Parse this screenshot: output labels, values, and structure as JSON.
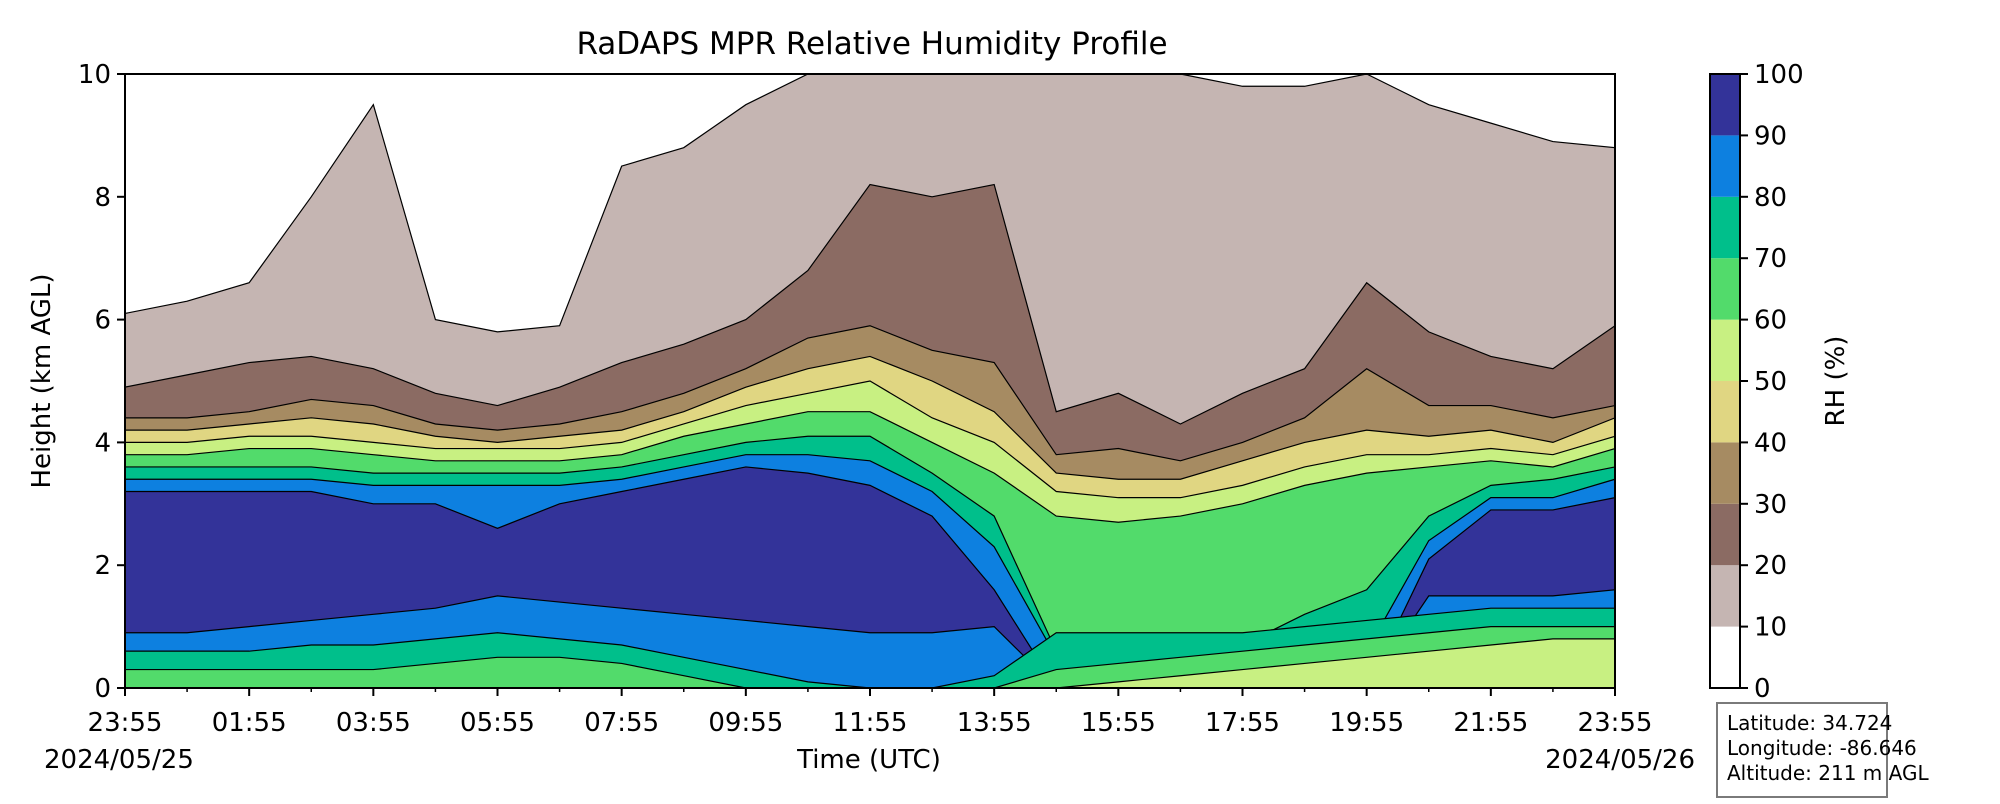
{
  "chart_data": {
    "type": "contour",
    "title": "RaDAPS MPR Relative Humidity Profile",
    "xlabel": "Time (UTC)",
    "ylabel": "Height (km AGL)",
    "x_tick_labels": [
      "23:55",
      "01:55",
      "03:55",
      "05:55",
      "07:55",
      "09:55",
      "11:55",
      "13:55",
      "15:55",
      "17:55",
      "19:55",
      "21:55",
      "23:55"
    ],
    "x_start_date": "2024/05/25",
    "x_end_date": "2024/05/26",
    "ylim": [
      0,
      10
    ],
    "y_ticks": [
      "0",
      "2",
      "4",
      "6",
      "8",
      "10"
    ],
    "colorbar": {
      "label": "RH (%)",
      "ticks": [
        "0",
        "10",
        "20",
        "30",
        "40",
        "50",
        "60",
        "70",
        "80",
        "90",
        "100"
      ],
      "levels": [
        0,
        10,
        20,
        30,
        40,
        50,
        60,
        70,
        80,
        90,
        100
      ],
      "colors": [
        "#ffffff",
        "#c5b5b2",
        "#8b6b63",
        "#a68b62",
        "#e0d682",
        "#c8f082",
        "#52db6b",
        "#00bf8b",
        "#0d80e0",
        "#333399"
      ]
    },
    "x_hours_from_start": [
      0,
      1,
      2,
      3,
      4,
      5,
      6,
      7,
      8,
      9,
      10,
      11,
      12,
      13,
      14,
      15,
      16,
      17,
      18,
      19,
      20,
      21,
      22,
      23,
      24
    ],
    "contour_heights_km": {
      "rh_10": [
        6.1,
        6.3,
        6.6,
        8.0,
        9.5,
        6.0,
        5.8,
        5.9,
        8.5,
        8.8,
        9.5,
        10,
        10,
        10,
        10,
        10,
        10,
        10,
        9.8,
        9.8,
        10,
        9.5,
        9.2,
        8.9,
        8.8
      ],
      "rh_20": [
        4.9,
        5.1,
        5.3,
        5.4,
        5.2,
        4.8,
        4.6,
        4.9,
        5.3,
        5.6,
        6.0,
        6.8,
        8.2,
        8.0,
        8.2,
        4.5,
        4.8,
        4.3,
        4.8,
        5.2,
        6.6,
        5.8,
        5.4,
        5.2,
        5.9
      ],
      "rh_30": [
        4.4,
        4.4,
        4.5,
        4.7,
        4.6,
        4.3,
        4.2,
        4.3,
        4.5,
        4.8,
        5.2,
        5.7,
        5.9,
        5.5,
        5.3,
        3.8,
        3.9,
        3.7,
        4.0,
        4.4,
        5.2,
        4.6,
        4.6,
        4.4,
        4.6
      ],
      "rh_40": [
        4.2,
        4.2,
        4.3,
        4.4,
        4.3,
        4.1,
        4.0,
        4.1,
        4.2,
        4.5,
        4.9,
        5.2,
        5.4,
        5.0,
        4.5,
        3.5,
        3.4,
        3.4,
        3.7,
        4.0,
        4.2,
        4.1,
        4.2,
        4.0,
        4.4
      ],
      "rh_50": [
        4.0,
        4.0,
        4.1,
        4.1,
        4.0,
        3.9,
        3.9,
        3.9,
        4.0,
        4.3,
        4.6,
        4.8,
        5.0,
        4.4,
        4.0,
        3.2,
        3.1,
        3.1,
        3.3,
        3.6,
        3.8,
        3.8,
        3.9,
        3.8,
        4.1
      ],
      "rh_60": [
        3.8,
        3.8,
        3.9,
        3.9,
        3.8,
        3.7,
        3.7,
        3.7,
        3.8,
        4.1,
        4.3,
        4.5,
        4.5,
        4.0,
        3.5,
        2.8,
        2.7,
        2.8,
        3.0,
        3.3,
        3.5,
        3.6,
        3.7,
        3.6,
        3.9
      ],
      "rh_70": [
        3.6,
        3.6,
        3.6,
        3.6,
        3.5,
        3.5,
        3.5,
        3.5,
        3.6,
        3.8,
        4.0,
        4.1,
        4.1,
        3.5,
        2.8,
        0.6,
        0.4,
        0.5,
        0.7,
        1.2,
        1.6,
        2.8,
        3.3,
        3.4,
        3.6
      ],
      "rh_80": [
        3.4,
        3.4,
        3.4,
        3.4,
        3.3,
        3.3,
        3.3,
        3.3,
        3.4,
        3.6,
        3.8,
        3.8,
        3.7,
        3.2,
        2.3,
        0.5,
        0.4,
        0.3,
        0.3,
        0.4,
        0.6,
        2.4,
        3.1,
        3.1,
        3.4
      ],
      "rh_90": [
        3.2,
        3.2,
        3.2,
        3.2,
        3.0,
        3.0,
        2.6,
        3.0,
        3.2,
        3.4,
        3.6,
        3.5,
        3.3,
        2.8,
        1.6,
        0,
        0,
        0,
        0,
        0,
        0,
        2.1,
        2.9,
        2.9,
        3.1
      ],
      "rh_90_bottom": [
        0.9,
        0.9,
        1.0,
        1.1,
        1.2,
        1.3,
        1.5,
        1.4,
        1.3,
        1.2,
        1.1,
        1.0,
        0.9,
        0.9,
        1.0,
        0,
        0,
        0,
        0,
        0,
        0,
        1.5,
        1.5,
        1.5,
        1.6
      ],
      "rh_80_bottom": [
        0.6,
        0.6,
        0.6,
        0.7,
        0.7,
        0.8,
        0.9,
        0.8,
        0.7,
        0.5,
        0.3,
        0.1,
        0,
        0,
        0.2,
        0.9,
        0.9,
        0.9,
        0.9,
        1.0,
        1.1,
        1.2,
        1.3,
        1.3,
        1.3
      ],
      "rh_70_bottom": [
        0.3,
        0.3,
        0.3,
        0.3,
        0.3,
        0.4,
        0.5,
        0.5,
        0.4,
        0.2,
        0,
        0,
        0,
        0,
        0,
        0.3,
        0.4,
        0.5,
        0.6,
        0.7,
        0.8,
        0.9,
        1.0,
        1.0,
        1.0
      ],
      "rh_60_bottom": [
        0,
        0,
        0,
        0,
        0,
        0,
        0,
        0,
        0,
        0,
        0,
        0,
        0,
        0,
        0,
        0,
        0.1,
        0.2,
        0.3,
        0.4,
        0.5,
        0.6,
        0.7,
        0.8,
        0.8
      ]
    }
  },
  "info": {
    "latitude": "Latitude: 34.724",
    "longitude": "Longitude: -86.646",
    "altitude": "Altitude: 211 m AGL"
  }
}
